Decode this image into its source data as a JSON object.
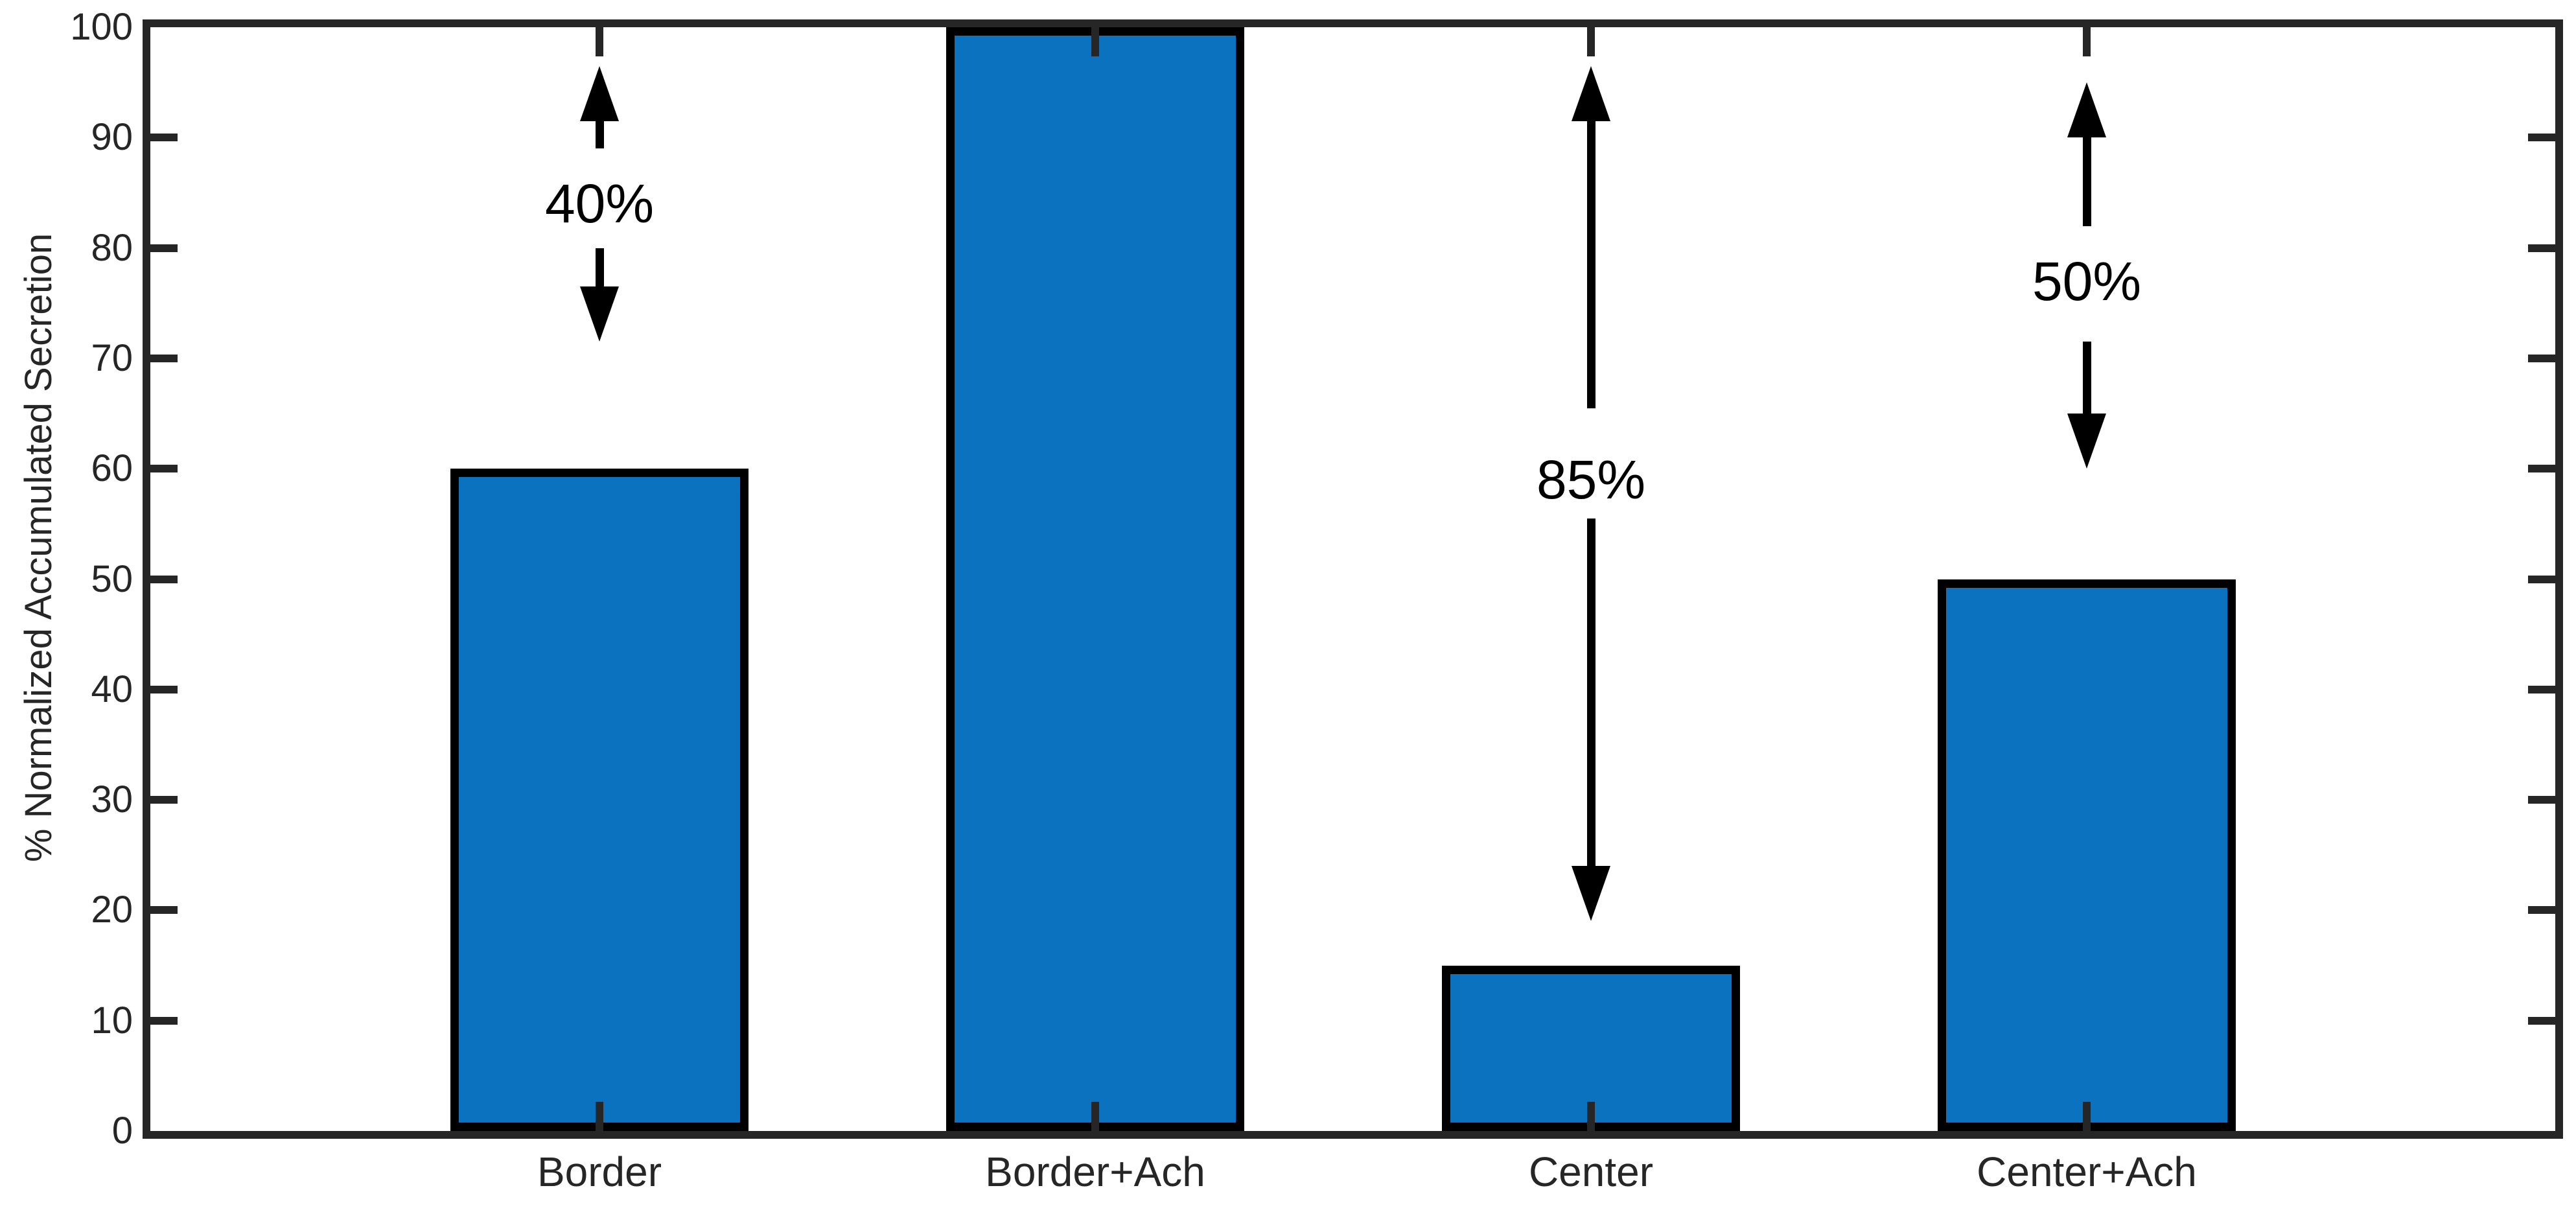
{
  "chart_data": {
    "type": "bar",
    "title": "",
    "categories": [
      "Border",
      "Border+Ach",
      "Center",
      "Center+Ach"
    ],
    "values": [
      60,
      100,
      15,
      50
    ],
    "xlabel": "",
    "ylabel": "% Normalized Accumulated Secretion",
    "ylim": [
      0,
      100
    ],
    "yticks": [
      0,
      10,
      20,
      30,
      40,
      50,
      60,
      70,
      80,
      90,
      100
    ],
    "grid": false,
    "legend": "none",
    "background": "#FFFFFF",
    "bar_color": "#0A72BF",
    "bar_edge_color": "#000000",
    "axis_color": "#262626",
    "annotation_color": "#000000",
    "annotations": [
      {
        "category": "Border",
        "label": "40%",
        "text_y": 84,
        "up_arrow": {
          "from": 89,
          "to": 96.5
        },
        "down_arrow": {
          "from": 80,
          "to": 71.5
        }
      },
      {
        "category": "Center",
        "label": "85%",
        "text_y": 59,
        "up_arrow": {
          "from": 65.5,
          "to": 96.5
        },
        "down_arrow": {
          "from": 55.5,
          "to": 19
        }
      },
      {
        "category": "Center+Ach",
        "label": "50%",
        "text_y": 77,
        "up_arrow": {
          "from": 82,
          "to": 95
        },
        "down_arrow": {
          "from": 71.5,
          "to": 60
        }
      }
    ]
  }
}
